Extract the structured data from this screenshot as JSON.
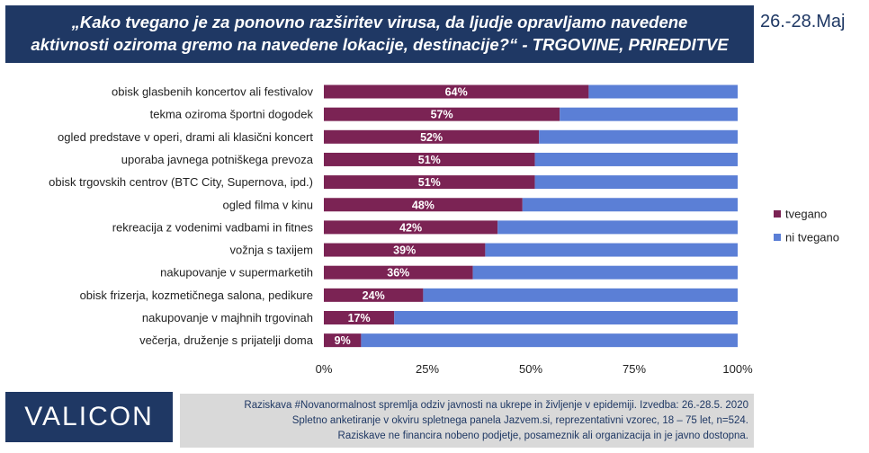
{
  "title": {
    "line1": "„Kako tvegano je za ponovno razširitev virusa, da ljudje opravljamo navedene",
    "line2": "aktivnosti oziroma gremo na navedene lokacije, destinacije?“ - TRGOVINE, PRIREDITVE"
  },
  "date": "26.-28.Maj",
  "logo": "VALICON",
  "footnote": {
    "line1": "Raziskava #Novanormalnost spremlja odziv javnosti na ukrepe in življenje v epidemiji. Izvedba: 26.-28.5. 2020",
    "line2": "Spletno anketiranje v okviru spletnega panela Jazvem.si, reprezentativni vzorec, 18 – 75 let, n=524.",
    "line3": "Raziskave ne financira nobeno podjetje, posameznik ali organizacija in je javno dostopna."
  },
  "colors": {
    "tvegano": "#7b2354",
    "ni_tvegano": "#5b7fd6",
    "title_bg": "#1f3864"
  },
  "chart_data": {
    "type": "bar",
    "orientation": "horizontal",
    "stacked": true,
    "categories": [
      "obisk glasbenih koncertov ali festivalov",
      "tekma oziroma športni dogodek",
      "ogled predstave v operi, drami ali klasični koncert",
      "uporaba javnega potniškega prevoza",
      "obisk trgovskih centrov (BTC City, Supernova, ipd.)",
      "ogled filma v kinu",
      "rekreacija z vodenimi vadbami in fitnes",
      "vožnja s taxijem",
      "nakupovanje v supermarketih",
      "obisk frizerja, kozmetičnega salona, pedikure",
      "nakupovanje v majhnih trgovinah",
      "večerja, druženje s prijatelji doma"
    ],
    "series": [
      {
        "name": "tvegano",
        "values": [
          64,
          57,
          52,
          51,
          51,
          48,
          42,
          39,
          36,
          24,
          17,
          9
        ],
        "labels": [
          "64%",
          "57%",
          "52%",
          "51%",
          "51%",
          "48%",
          "42%",
          "39%",
          "36%",
          "24%",
          "17%",
          "9%"
        ]
      },
      {
        "name": "ni tvegano",
        "values": [
          36,
          43,
          48,
          49,
          49,
          52,
          58,
          61,
          64,
          76,
          83,
          91
        ]
      }
    ],
    "xlim": [
      0,
      100
    ],
    "xticks": [
      "0%",
      "25%",
      "50%",
      "75%",
      "100%"
    ],
    "legend_position": "right",
    "grid": false
  }
}
